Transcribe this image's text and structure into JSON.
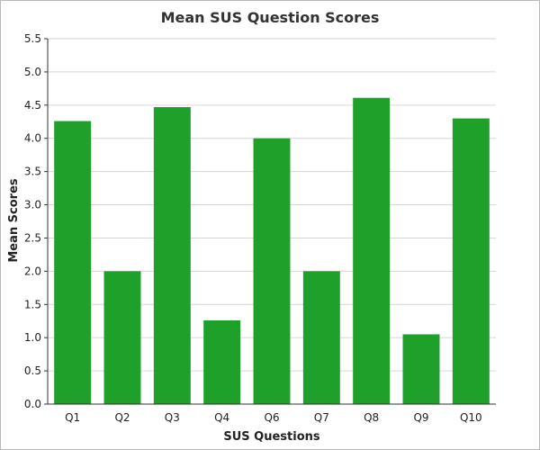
{
  "chart_data": {
    "type": "bar",
    "title": "Mean SUS Question Scores",
    "xlabel": "SUS Questions",
    "ylabel": "Mean Scores",
    "categories": [
      "Q1",
      "Q2",
      "Q3",
      "Q4",
      "Q6",
      "Q7",
      "Q8",
      "Q9",
      "Q10"
    ],
    "values": [
      4.26,
      2.0,
      4.47,
      1.26,
      4.0,
      2.0,
      4.61,
      1.05,
      4.3
    ],
    "ylim": [
      0,
      5.5
    ],
    "yticks": [
      "0.0",
      "0.5",
      "1.0",
      "1.5",
      "2.0",
      "2.5",
      "3.0",
      "3.5",
      "4.0",
      "4.5",
      "5.0",
      "5.5"
    ],
    "grid": true,
    "bar_color": "#1ea02a",
    "grid_color": "#d6d6d6"
  }
}
